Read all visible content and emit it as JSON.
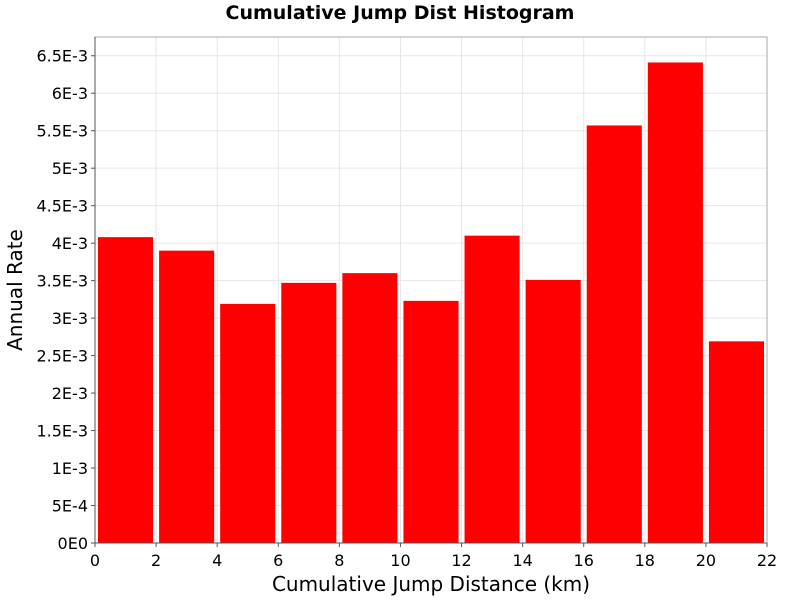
{
  "chart_data": {
    "type": "bar",
    "title": "Cumulative Jump Dist Histogram",
    "xlabel": "Cumulative Jump Distance (km)",
    "ylabel": "Annual Rate",
    "xlim": [
      0,
      22
    ],
    "ylim": [
      0,
      0.00675
    ],
    "grid": true,
    "bin_width": 2,
    "x": [
      1,
      3,
      5,
      7,
      9,
      11,
      13,
      15,
      17,
      19,
      21
    ],
    "values": [
      0.00408,
      0.0039,
      0.00319,
      0.00347,
      0.0036,
      0.00323,
      0.0041,
      0.00351,
      0.00557,
      0.00641,
      0.00269
    ],
    "x_ticks": [
      0,
      2,
      4,
      6,
      8,
      10,
      12,
      14,
      16,
      18,
      20,
      22
    ],
    "x_tick_labels": [
      "0",
      "2",
      "4",
      "6",
      "8",
      "10",
      "12",
      "14",
      "16",
      "18",
      "20",
      "22"
    ],
    "y_ticks": [
      0,
      0.0005,
      0.001,
      0.0015,
      0.002,
      0.0025,
      0.003,
      0.0035,
      0.004,
      0.0045,
      0.005,
      0.0055,
      0.006,
      0.0065
    ],
    "y_tick_labels": [
      "0E0",
      "5E-4",
      "1E-3",
      "1.5E-3",
      "2E-3",
      "2.5E-3",
      "3E-3",
      "3.5E-3",
      "4E-3",
      "4.5E-3",
      "5E-3",
      "5.5E-3",
      "6E-3",
      "6.5E-3"
    ],
    "bar_color": "#ff0000"
  }
}
